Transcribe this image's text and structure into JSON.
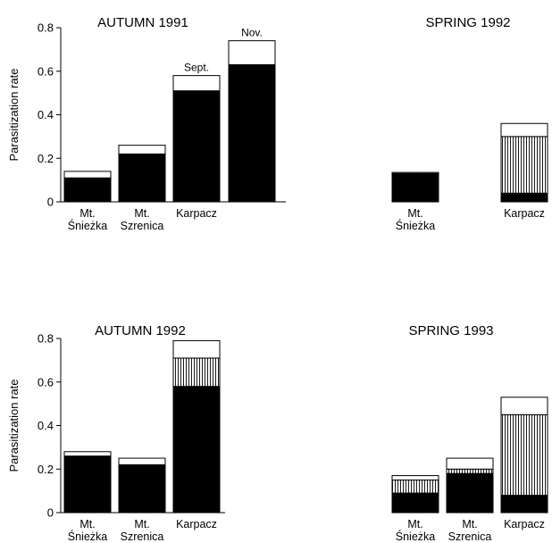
{
  "chart_data": [
    {
      "type": "bar",
      "stacked": true,
      "title": "AUTUMN 1991",
      "ylabel": "Parasitization rate",
      "ylim": [
        0,
        0.8
      ],
      "yticks": [
        "0",
        "0.2",
        "0.4",
        "0.6",
        "0.8"
      ],
      "categories": [
        {
          "lines": [
            "Mt.",
            "Śnieżka"
          ]
        },
        {
          "lines": [
            "Mt.",
            "Szrenica"
          ]
        },
        {
          "lines": [
            "Karpacz"
          ]
        },
        {
          "lines": []
        }
      ],
      "bar_labels": [
        "",
        "",
        "Sept.",
        "Nov."
      ],
      "series": [
        {
          "fill": "solid",
          "values": [
            0.11,
            0.22,
            0.51,
            0.63
          ]
        },
        {
          "fill": "hatched",
          "values": [
            0,
            0,
            0,
            0
          ]
        },
        {
          "fill": "open",
          "values": [
            0.03,
            0.04,
            0.07,
            0.11
          ]
        }
      ]
    },
    {
      "type": "bar",
      "stacked": true,
      "title": "SPRING 1992",
      "ylabel": "",
      "ylim": [
        0,
        0.8
      ],
      "yticks": [],
      "categories": [
        {
          "lines": [
            "Mt.",
            "Śnieżka"
          ]
        },
        {
          "lines": [
            "Karpacz"
          ]
        }
      ],
      "bar_labels": [
        "",
        ""
      ],
      "series": [
        {
          "fill": "solid",
          "values": [
            0.13,
            0.04
          ]
        },
        {
          "fill": "hatched",
          "values": [
            0.005,
            0.26
          ]
        },
        {
          "fill": "open",
          "values": [
            0,
            0.06
          ]
        }
      ]
    },
    {
      "type": "bar",
      "stacked": true,
      "title": "AUTUMN 1992",
      "ylabel": "Parasitization rate",
      "ylim": [
        0,
        0.8
      ],
      "yticks": [
        "0",
        "0.2",
        "0.4",
        "0.6",
        "0.8"
      ],
      "categories": [
        {
          "lines": [
            "Mt.",
            "Śnieżka"
          ]
        },
        {
          "lines": [
            "Mt.",
            "Szrenica"
          ]
        },
        {
          "lines": [
            "Karpacz"
          ]
        }
      ],
      "bar_labels": [
        "",
        "",
        ""
      ],
      "series": [
        {
          "fill": "solid",
          "values": [
            0.26,
            0.22,
            0.58
          ]
        },
        {
          "fill": "hatched",
          "values": [
            0,
            0,
            0.13
          ]
        },
        {
          "fill": "open",
          "values": [
            0.02,
            0.03,
            0.08
          ]
        }
      ]
    },
    {
      "type": "bar",
      "stacked": true,
      "title": "SPRING 1993",
      "ylabel": "",
      "ylim": [
        0,
        0.8
      ],
      "yticks": [],
      "categories": [
        {
          "lines": [
            "Mt.",
            "Śnieżka"
          ]
        },
        {
          "lines": [
            "Mt.",
            "Szrenica"
          ]
        },
        {
          "lines": [
            "Karpacz"
          ]
        }
      ],
      "bar_labels": [
        "",
        "",
        ""
      ],
      "series": [
        {
          "fill": "solid",
          "values": [
            0.09,
            0.18,
            0.08
          ]
        },
        {
          "fill": "hatched",
          "values": [
            0.06,
            0.02,
            0.37
          ]
        },
        {
          "fill": "open",
          "values": [
            0.02,
            0.05,
            0.08
          ]
        }
      ]
    }
  ]
}
